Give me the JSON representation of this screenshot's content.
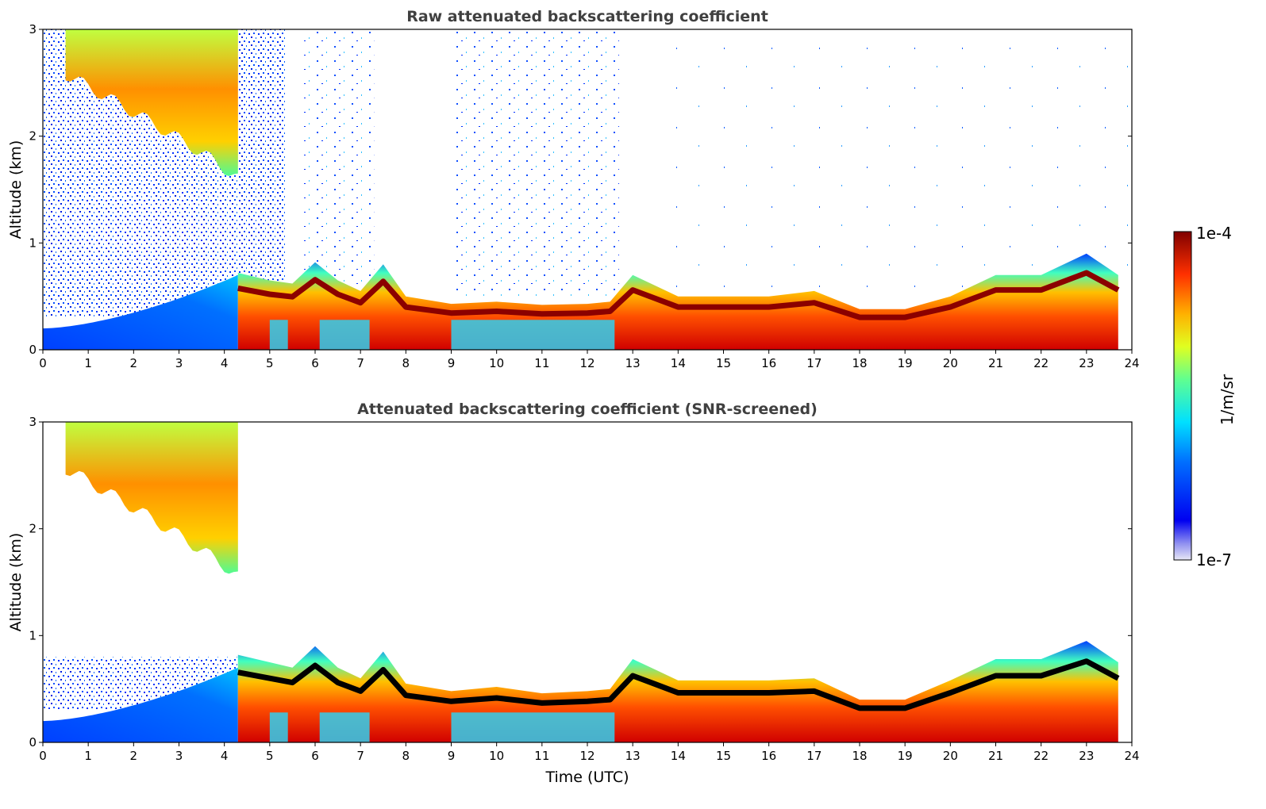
{
  "chart_data": [
    {
      "type": "heatmap",
      "title": "Raw attenuated backscattering coefficient",
      "xlabel": "",
      "ylabel": "Altitude (km)",
      "xlim": [
        0,
        24
      ],
      "ylim": [
        0,
        3
      ],
      "xticks": [
        "0",
        "1",
        "2",
        "3",
        "4",
        "5",
        "6",
        "7",
        "8",
        "9",
        "10",
        "11",
        "12",
        "13",
        "14",
        "15",
        "16",
        "17",
        "18",
        "19",
        "20",
        "21",
        "22",
        "23",
        "24"
      ],
      "yticks": [
        "0",
        "1",
        "2",
        "3"
      ],
      "layers": [
        {
          "name": "boundary-layer-top",
          "time": [
            4.3,
            5.0,
            5.5,
            6.0,
            6.5,
            7.0,
            7.5,
            8.0,
            9.0,
            10.0,
            11.0,
            12.0,
            12.5,
            13.0,
            13.5,
            14.0,
            15.0,
            16.0,
            17.0,
            18.0,
            19.0,
            20.0,
            21.0,
            22.0,
            23.0,
            23.7
          ],
          "altitude": [
            0.72,
            0.65,
            0.62,
            0.82,
            0.65,
            0.55,
            0.8,
            0.5,
            0.43,
            0.45,
            0.42,
            0.43,
            0.45,
            0.7,
            0.6,
            0.5,
            0.5,
            0.5,
            0.55,
            0.38,
            0.38,
            0.5,
            0.7,
            0.7,
            0.9,
            0.7
          ]
        },
        {
          "name": "cirrus",
          "time_range": [
            0.5,
            4.3
          ],
          "altitude_range": [
            1.6,
            3.0
          ]
        }
      ]
    },
    {
      "type": "heatmap",
      "title": "Attenuated backscattering coefficient (SNR-screened)",
      "xlabel": "Time (UTC)",
      "ylabel": "Altitude (km)",
      "xlim": [
        0,
        24
      ],
      "ylim": [
        0,
        3
      ],
      "xticks": [
        "0",
        "1",
        "2",
        "3",
        "4",
        "5",
        "6",
        "7",
        "8",
        "9",
        "10",
        "11",
        "12",
        "13",
        "14",
        "15",
        "16",
        "17",
        "18",
        "19",
        "20",
        "21",
        "22",
        "23",
        "24"
      ],
      "yticks": [
        "0",
        "1",
        "2",
        "3"
      ],
      "layers": [
        {
          "name": "boundary-layer-top",
          "time": [
            4.3,
            5.0,
            5.5,
            6.0,
            6.5,
            7.0,
            7.5,
            8.0,
            9.0,
            10.0,
            11.0,
            12.0,
            12.5,
            13.0,
            13.5,
            14.0,
            15.0,
            16.0,
            17.0,
            18.0,
            19.0,
            20.0,
            21.0,
            22.0,
            23.0,
            23.7
          ],
          "altitude": [
            0.82,
            0.75,
            0.7,
            0.9,
            0.7,
            0.6,
            0.85,
            0.55,
            0.48,
            0.52,
            0.46,
            0.48,
            0.5,
            0.78,
            0.68,
            0.58,
            0.58,
            0.58,
            0.6,
            0.4,
            0.4,
            0.58,
            0.78,
            0.78,
            0.95,
            0.75
          ]
        },
        {
          "name": "cirrus",
          "time_range": [
            0.5,
            4.3
          ],
          "altitude_range": [
            1.55,
            3.0
          ]
        }
      ]
    }
  ],
  "colorbar": {
    "label": "1/m/sr",
    "max_label": "1e-4",
    "min_label": "1e-7",
    "scale": "log",
    "range": [
      1e-07,
      0.0001
    ],
    "colormap": "jet"
  }
}
